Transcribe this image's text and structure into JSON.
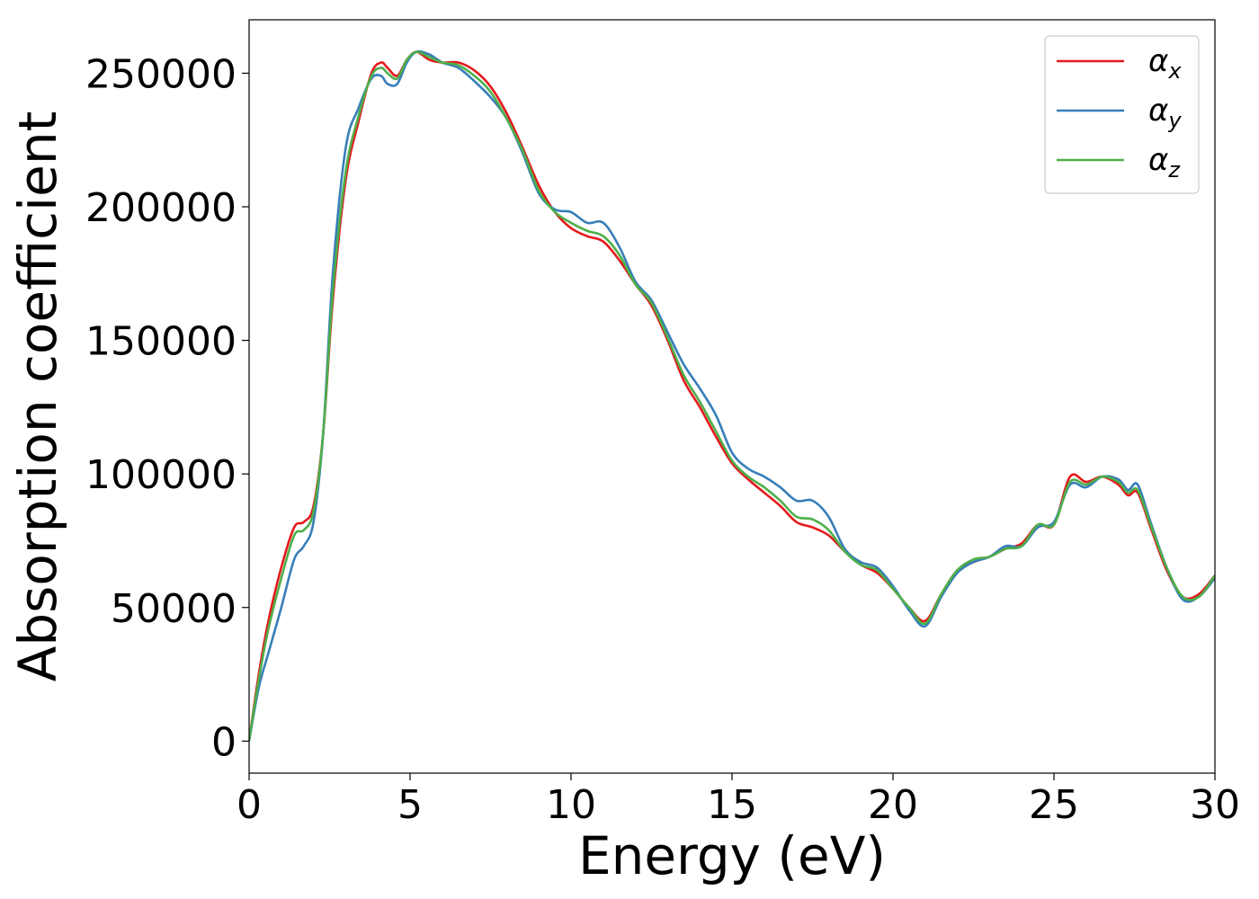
{
  "chart_data": {
    "type": "line",
    "xlabel": "Energy (eV)",
    "ylabel": "Absorption coefficient",
    "xlim": [
      0,
      30
    ],
    "ylim": [
      -12000,
      270000
    ],
    "xticks": [
      0,
      5,
      10,
      15,
      20,
      25,
      30
    ],
    "yticks": [
      0,
      50000,
      100000,
      150000,
      200000,
      250000
    ],
    "grid": false,
    "legend_position": "top-right",
    "series": [
      {
        "name": "α",
        "subscript": "x",
        "color": "#e41a1c",
        "x": [
          0,
          0.3,
          0.6,
          1.0,
          1.4,
          1.7,
          2.0,
          2.3,
          2.6,
          3.0,
          3.4,
          3.8,
          4.1,
          4.3,
          4.6,
          4.9,
          5.2,
          5.6,
          6.0,
          6.5,
          7.0,
          7.5,
          8.0,
          8.5,
          9.0,
          9.5,
          10.0,
          10.5,
          11.0,
          11.5,
          12.0,
          12.5,
          13.0,
          13.5,
          14.0,
          14.5,
          15.0,
          15.5,
          16.0,
          16.5,
          17.0,
          17.5,
          18.0,
          18.5,
          19.0,
          19.5,
          20.0,
          20.5,
          21.0,
          21.5,
          22.0,
          22.5,
          23.0,
          23.5,
          24.0,
          24.5,
          25.0,
          25.5,
          26.0,
          26.5,
          27.0,
          27.3,
          27.6,
          28.0,
          28.5,
          29.0,
          29.5,
          30.0
        ],
        "y": [
          0,
          25000,
          45000,
          65000,
          80000,
          82000,
          88000,
          115000,
          165000,
          210000,
          232000,
          250000,
          254000,
          252000,
          249000,
          255000,
          258000,
          255000,
          254000,
          254000,
          251000,
          245000,
          235000,
          222000,
          208000,
          198000,
          192000,
          189000,
          187000,
          180000,
          171000,
          163000,
          150000,
          135000,
          125000,
          114000,
          104000,
          98000,
          93000,
          88000,
          82000,
          80000,
          77000,
          71000,
          66000,
          63000,
          57000,
          50000,
          45000,
          55000,
          64000,
          67000,
          69000,
          72000,
          74000,
          81000,
          81000,
          99000,
          97000,
          99000,
          96000,
          92000,
          93000,
          80000,
          64000,
          54000,
          55000,
          62000
        ]
      },
      {
        "name": "α",
        "subscript": "y",
        "color": "#377eb8",
        "x": [
          0,
          0.3,
          0.6,
          1.0,
          1.4,
          1.7,
          2.0,
          2.3,
          2.6,
          3.0,
          3.4,
          3.8,
          4.1,
          4.3,
          4.6,
          4.9,
          5.2,
          5.6,
          6.0,
          6.5,
          7.0,
          7.5,
          8.0,
          8.5,
          9.0,
          9.5,
          10.0,
          10.5,
          11.0,
          11.5,
          12.0,
          12.5,
          13.0,
          13.5,
          14.0,
          14.5,
          15.0,
          15.5,
          16.0,
          16.5,
          17.0,
          17.5,
          18.0,
          18.5,
          19.0,
          19.5,
          20.0,
          20.5,
          21.0,
          21.5,
          22.0,
          22.5,
          23.0,
          23.5,
          24.0,
          24.5,
          25.0,
          25.5,
          26.0,
          26.5,
          27.0,
          27.3,
          27.6,
          28.0,
          28.5,
          29.0,
          29.5,
          30.0
        ],
        "y": [
          0,
          20000,
          33000,
          50000,
          68000,
          73000,
          82000,
          115000,
          175000,
          222000,
          237000,
          248000,
          249000,
          246000,
          246000,
          254000,
          258000,
          257000,
          254000,
          252000,
          247000,
          241000,
          233000,
          220000,
          205000,
          199000,
          198000,
          194000,
          194000,
          185000,
          172000,
          165000,
          153000,
          141000,
          132000,
          122000,
          108000,
          102000,
          99000,
          95000,
          90000,
          90000,
          84000,
          72000,
          67000,
          65000,
          58000,
          49000,
          43000,
          54000,
          63000,
          67000,
          69000,
          73000,
          73000,
          80000,
          82000,
          96000,
          95000,
          99000,
          98000,
          94000,
          96000,
          82000,
          65000,
          53000,
          54000,
          61000
        ]
      },
      {
        "name": "α",
        "subscript": "z",
        "color": "#4daf4a",
        "x": [
          0,
          0.3,
          0.6,
          1.0,
          1.4,
          1.7,
          2.0,
          2.3,
          2.6,
          3.0,
          3.4,
          3.8,
          4.1,
          4.3,
          4.6,
          4.9,
          5.2,
          5.6,
          6.0,
          6.5,
          7.0,
          7.5,
          8.0,
          8.5,
          9.0,
          9.5,
          10.0,
          10.5,
          11.0,
          11.5,
          12.0,
          12.5,
          13.0,
          13.5,
          14.0,
          14.5,
          15.0,
          15.5,
          16.0,
          16.5,
          17.0,
          17.5,
          18.0,
          18.5,
          19.0,
          19.5,
          20.0,
          20.5,
          21.0,
          21.5,
          22.0,
          22.5,
          23.0,
          23.5,
          24.0,
          24.5,
          25.0,
          25.5,
          26.0,
          26.5,
          27.0,
          27.3,
          27.6,
          28.0,
          28.5,
          29.0,
          29.5,
          30.0
        ],
        "y": [
          0,
          23000,
          42000,
          61000,
          77000,
          79000,
          86000,
          115000,
          168000,
          213000,
          234000,
          249000,
          252000,
          250000,
          248000,
          255000,
          258000,
          256000,
          254000,
          253000,
          249000,
          243000,
          233000,
          221000,
          206000,
          198000,
          194000,
          191000,
          189000,
          182000,
          171000,
          164000,
          151000,
          137000,
          127000,
          116000,
          105000,
          99000,
          95000,
          90000,
          84000,
          83000,
          79000,
          71000,
          66000,
          64000,
          57000,
          50000,
          44000,
          55000,
          64000,
          68000,
          69000,
          72000,
          73000,
          81000,
          81000,
          97000,
          96000,
          99000,
          97000,
          93000,
          94000,
          81000,
          65000,
          54000,
          54000,
          62000
        ]
      }
    ]
  }
}
